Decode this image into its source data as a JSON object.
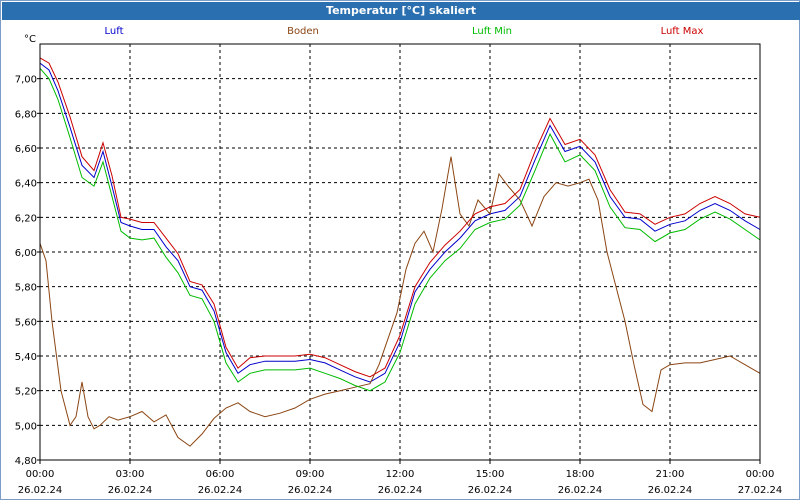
{
  "title": "Temperatur [°C] skaliert",
  "chart_data": {
    "type": "line",
    "ylabel": "°C",
    "ylim": [
      4.8,
      7.2
    ],
    "yticks": [
      "4,80",
      "5,00",
      "5,20",
      "5,40",
      "5,60",
      "5,80",
      "6,00",
      "6,20",
      "6,40",
      "6,60",
      "6,80",
      "7,00"
    ],
    "ytick_values": [
      4.8,
      5.0,
      5.2,
      5.4,
      5.6,
      5.8,
      6.0,
      6.2,
      6.4,
      6.6,
      6.8,
      7.0
    ],
    "xlim": [
      0,
      24
    ],
    "xticks": [
      {
        "time": "00:00",
        "date": "26.02.24",
        "h": 0
      },
      {
        "time": "03:00",
        "date": "26.02.24",
        "h": 3
      },
      {
        "time": "06:00",
        "date": "26.02.24",
        "h": 6
      },
      {
        "time": "09:00",
        "date": "26.02.24",
        "h": 9
      },
      {
        "time": "12:00",
        "date": "26.02.24",
        "h": 12
      },
      {
        "time": "15:00",
        "date": "26.02.24",
        "h": 15
      },
      {
        "time": "18:00",
        "date": "26.02.24",
        "h": 18
      },
      {
        "time": "21:00",
        "date": "26.02.24",
        "h": 21
      },
      {
        "time": "00:00",
        "date": "27.02.24",
        "h": 24
      }
    ],
    "grid": true,
    "legend_position": "top",
    "series": [
      {
        "name": "Luft",
        "color": "#0000cc",
        "x": [
          0,
          0.3,
          0.6,
          1.0,
          1.4,
          1.8,
          2.1,
          2.4,
          2.7,
          3.0,
          3.4,
          3.8,
          4.2,
          4.6,
          5.0,
          5.4,
          5.8,
          6.2,
          6.6,
          7.0,
          7.5,
          8.0,
          8.5,
          9.0,
          9.5,
          10.0,
          10.5,
          11.0,
          11.5,
          12.0,
          12.5,
          13.0,
          13.5,
          14.0,
          14.5,
          15.0,
          15.5,
          16.0,
          16.5,
          17.0,
          17.5,
          18.0,
          18.5,
          19.0,
          19.5,
          20.0,
          20.5,
          21.0,
          21.5,
          22.0,
          22.5,
          23.0,
          23.5,
          24.0
        ],
        "y": [
          7.09,
          7.05,
          6.93,
          6.72,
          6.5,
          6.43,
          6.58,
          6.38,
          6.17,
          6.15,
          6.13,
          6.13,
          6.03,
          5.95,
          5.8,
          5.78,
          5.66,
          5.42,
          5.3,
          5.35,
          5.37,
          5.37,
          5.37,
          5.38,
          5.36,
          5.32,
          5.28,
          5.25,
          5.3,
          5.48,
          5.77,
          5.9,
          6.0,
          6.08,
          6.18,
          6.22,
          6.24,
          6.32,
          6.53,
          6.73,
          6.58,
          6.61,
          6.52,
          6.32,
          6.2,
          6.19,
          6.12,
          6.16,
          6.18,
          6.24,
          6.28,
          6.24,
          6.18,
          6.13
        ]
      },
      {
        "name": "Boden",
        "color": "#8b4513",
        "x": [
          0,
          0.2,
          0.4,
          0.7,
          1.0,
          1.2,
          1.4,
          1.6,
          1.8,
          2.0,
          2.3,
          2.6,
          3.0,
          3.4,
          3.8,
          4.2,
          4.6,
          5.0,
          5.4,
          5.8,
          6.2,
          6.6,
          7.0,
          7.5,
          8.0,
          8.5,
          9.0,
          9.5,
          10.0,
          10.5,
          11.0,
          11.3,
          11.6,
          11.9,
          12.2,
          12.5,
          12.8,
          13.1,
          13.4,
          13.7,
          14.0,
          14.3,
          14.6,
          15.0,
          15.3,
          15.6,
          16.0,
          16.4,
          16.8,
          17.2,
          17.6,
          18.0,
          18.3,
          18.6,
          18.9,
          19.2,
          19.5,
          19.8,
          20.1,
          20.4,
          20.7,
          21.0,
          21.5,
          22.0,
          22.5,
          23.0,
          23.5,
          24.0
        ],
        "y": [
          6.05,
          5.95,
          5.6,
          5.2,
          5.0,
          5.05,
          5.25,
          5.05,
          4.98,
          5.0,
          5.05,
          5.03,
          5.05,
          5.08,
          5.02,
          5.06,
          4.93,
          4.88,
          4.95,
          5.04,
          5.1,
          5.13,
          5.08,
          5.05,
          5.07,
          5.1,
          5.15,
          5.18,
          5.2,
          5.22,
          5.24,
          5.35,
          5.5,
          5.65,
          5.9,
          6.05,
          6.12,
          6.0,
          6.25,
          6.55,
          6.22,
          6.15,
          6.3,
          6.22,
          6.45,
          6.38,
          6.3,
          6.15,
          6.32,
          6.4,
          6.38,
          6.4,
          6.42,
          6.3,
          6.0,
          5.8,
          5.6,
          5.35,
          5.12,
          5.08,
          5.32,
          5.35,
          5.36,
          5.36,
          5.38,
          5.4,
          5.35,
          5.3
        ]
      },
      {
        "name": "Luft Min",
        "color": "#00bb00",
        "x": [
          0,
          0.3,
          0.6,
          1.0,
          1.4,
          1.8,
          2.1,
          2.4,
          2.7,
          3.0,
          3.4,
          3.8,
          4.2,
          4.6,
          5.0,
          5.4,
          5.8,
          6.2,
          6.6,
          7.0,
          7.5,
          8.0,
          8.5,
          9.0,
          9.5,
          10.0,
          10.5,
          11.0,
          11.5,
          12.0,
          12.5,
          13.0,
          13.5,
          14.0,
          14.5,
          15.0,
          15.5,
          16.0,
          16.5,
          17.0,
          17.5,
          18.0,
          18.5,
          19.0,
          19.5,
          20.0,
          20.5,
          21.0,
          21.5,
          22.0,
          22.5,
          23.0,
          23.5,
          24.0
        ],
        "y": [
          7.06,
          7.0,
          6.88,
          6.66,
          6.43,
          6.38,
          6.52,
          6.32,
          6.12,
          6.08,
          6.07,
          6.08,
          5.97,
          5.88,
          5.75,
          5.73,
          5.6,
          5.36,
          5.25,
          5.3,
          5.32,
          5.32,
          5.32,
          5.33,
          5.3,
          5.27,
          5.23,
          5.2,
          5.25,
          5.42,
          5.7,
          5.85,
          5.95,
          6.02,
          6.13,
          6.17,
          6.19,
          6.27,
          6.47,
          6.68,
          6.52,
          6.56,
          6.47,
          6.26,
          6.14,
          6.13,
          6.06,
          6.11,
          6.13,
          6.19,
          6.23,
          6.19,
          6.13,
          6.07
        ]
      },
      {
        "name": "Luft Max",
        "color": "#cc0000",
        "x": [
          0,
          0.3,
          0.6,
          1.0,
          1.4,
          1.8,
          2.1,
          2.4,
          2.7,
          3.0,
          3.4,
          3.8,
          4.2,
          4.6,
          5.0,
          5.4,
          5.8,
          6.2,
          6.6,
          7.0,
          7.5,
          8.0,
          8.5,
          9.0,
          9.5,
          10.0,
          10.5,
          11.0,
          11.5,
          12.0,
          12.5,
          13.0,
          13.5,
          14.0,
          14.5,
          15.0,
          15.5,
          16.0,
          16.5,
          17.0,
          17.5,
          18.0,
          18.5,
          19.0,
          19.5,
          20.0,
          20.5,
          21.0,
          21.5,
          22.0,
          22.5,
          23.0,
          23.5,
          24.0
        ],
        "y": [
          7.12,
          7.09,
          6.98,
          6.78,
          6.55,
          6.47,
          6.63,
          6.44,
          6.2,
          6.19,
          6.17,
          6.17,
          6.08,
          5.99,
          5.83,
          5.81,
          5.7,
          5.45,
          5.33,
          5.39,
          5.4,
          5.4,
          5.4,
          5.41,
          5.39,
          5.35,
          5.31,
          5.28,
          5.33,
          5.52,
          5.8,
          5.94,
          6.04,
          6.12,
          6.22,
          6.26,
          6.28,
          6.36,
          6.58,
          6.77,
          6.62,
          6.65,
          6.56,
          6.36,
          6.23,
          6.22,
          6.16,
          6.2,
          6.22,
          6.28,
          6.32,
          6.28,
          6.22,
          6.2
        ]
      }
    ]
  }
}
